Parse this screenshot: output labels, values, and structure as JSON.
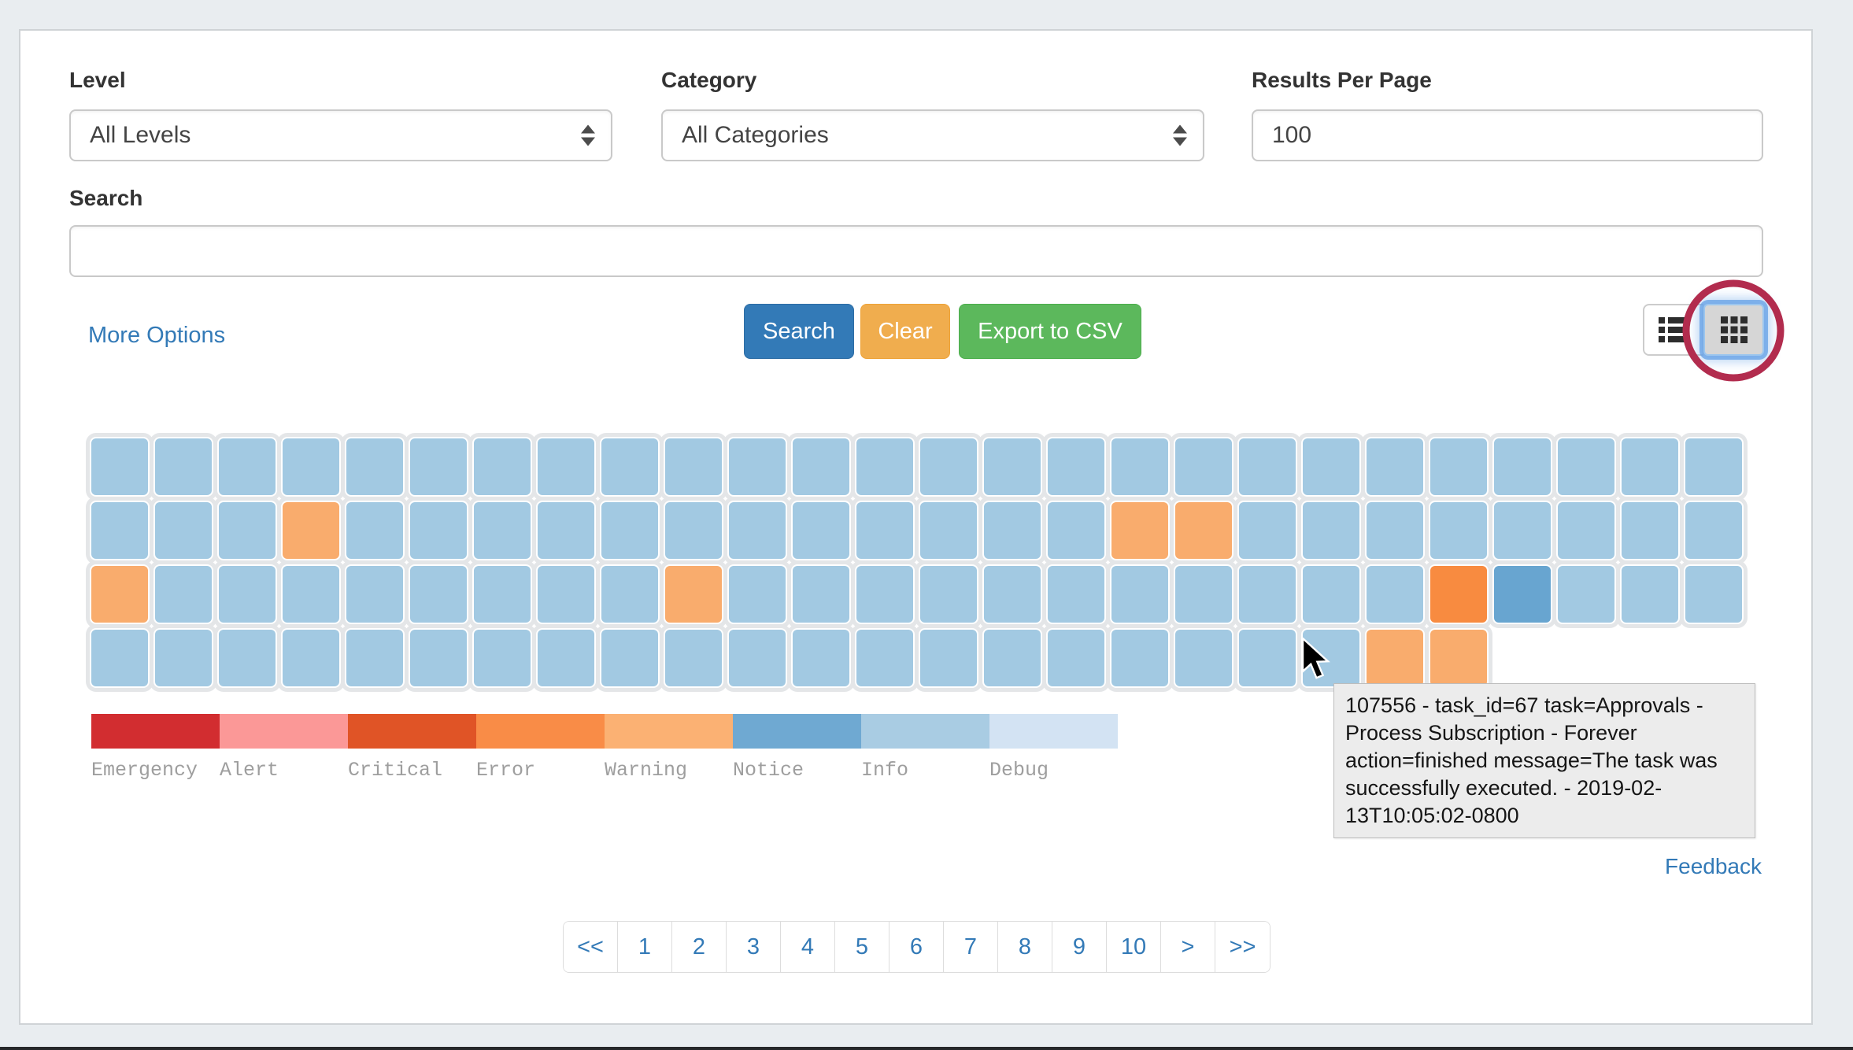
{
  "filters": {
    "level": {
      "label": "Level",
      "value": "All Levels"
    },
    "category": {
      "label": "Category",
      "value": "All Categories"
    },
    "results_per_page": {
      "label": "Results Per Page",
      "value": "100"
    },
    "search": {
      "label": "Search",
      "value": "",
      "placeholder": ""
    }
  },
  "actions": {
    "more_options": "More Options",
    "search": "Search",
    "clear": "Clear",
    "export_csv": "Export to CSV"
  },
  "view_toggle": {
    "active": "grid"
  },
  "chart_data": {
    "type": "heatmap",
    "legend": [
      {
        "label": "Emergency",
        "color": "#d22d30"
      },
      {
        "label": "Alert",
        "color": "#fb9897"
      },
      {
        "label": "Critical",
        "color": "#e05426"
      },
      {
        "label": "Error",
        "color": "#f98c47"
      },
      {
        "label": "Warning",
        "color": "#fbb173"
      },
      {
        "label": "Notice",
        "color": "#6fa9d2"
      },
      {
        "label": "Info",
        "color": "#a9cce3"
      },
      {
        "label": "Debug",
        "color": "#d3e3f3"
      }
    ],
    "cell_colors": {
      "info": "#a2c9e2",
      "warning": "#f9ac6d",
      "error": "#f88b40",
      "notice": "#68a5d0"
    },
    "rows": [
      [
        "info",
        "info",
        "info",
        "info",
        "info",
        "info",
        "info",
        "info",
        "info",
        "info",
        "info",
        "info",
        "info",
        "info",
        "info",
        "info",
        "info",
        "info",
        "info",
        "info",
        "info",
        "info",
        "info",
        "info",
        "info",
        "info"
      ],
      [
        "info",
        "info",
        "info",
        "warning",
        "info",
        "info",
        "info",
        "info",
        "info",
        "info",
        "info",
        "info",
        "info",
        "info",
        "info",
        "info",
        "warning",
        "warning",
        "info",
        "info",
        "info",
        "info",
        "info",
        "info",
        "info",
        "info"
      ],
      [
        "warning",
        "info",
        "info",
        "info",
        "info",
        "info",
        "info",
        "info",
        "info",
        "warning",
        "info",
        "info",
        "info",
        "info",
        "info",
        "info",
        "info",
        "info",
        "info",
        "info",
        "info",
        "error",
        "notice",
        "info",
        "info",
        "info"
      ],
      [
        "info",
        "info",
        "info",
        "info",
        "info",
        "info",
        "info",
        "info",
        "info",
        "info",
        "info",
        "info",
        "info",
        "info",
        "info",
        "info",
        "info",
        "info",
        "info",
        "info",
        "warning",
        "warning"
      ]
    ]
  },
  "tooltip": {
    "text": "107556 - task_id=67 task=Approvals - Process Subscription - Forever action=finished message=The task was successfully executed. - 2019-02-13T10:05:02-0800"
  },
  "feedback": "Feedback",
  "pagination": [
    "<<",
    "1",
    "2",
    "3",
    "4",
    "5",
    "6",
    "7",
    "8",
    "9",
    "10",
    ">",
    ">>"
  ]
}
